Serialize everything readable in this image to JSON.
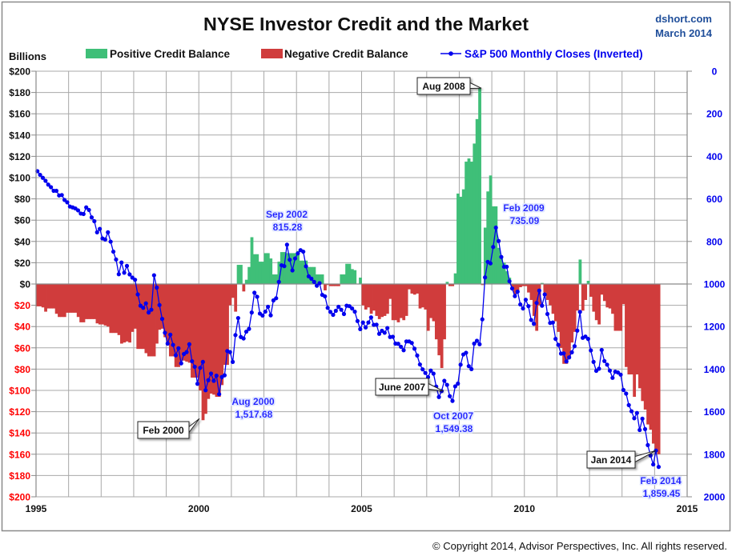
{
  "colors": {
    "positive": "#3fbf78",
    "negative": "#d03c3c",
    "sp500": "#0000ee",
    "grid": "#a8a8a8"
  },
  "header": {
    "title": "NYSE Investor Credit and the Market",
    "source": "dshort.com",
    "date": "March 2014"
  },
  "copyright": "© Copyright 2014, Advisor Perspectives, Inc. All rights reserved.",
  "chart_data": {
    "type": "bar+line",
    "title": "NYSE Investor Credit and the Market",
    "ylabel": "Billions",
    "ylim": [
      -200,
      200
    ],
    "y2lim_inverted": [
      0,
      2000
    ],
    "xlim": [
      1995,
      2015
    ],
    "grid": true,
    "legend_position": "top",
    "legend": [
      "Positive Credit Balance",
      "Negative Credit Balance",
      "S&P 500 Monthly Closes (Inverted)"
    ],
    "y_ticks": [
      "$200",
      "$180",
      "$160",
      "$140",
      "$120",
      "$100",
      "$80",
      "$60",
      "$40",
      "$20",
      "$0",
      "$20",
      "$40",
      "$60",
      "$80",
      "$100",
      "$120",
      "$140",
      "$160",
      "$180",
      "$200"
    ],
    "y2_ticks": [
      "0",
      "200",
      "400",
      "600",
      "800",
      "1000",
      "1200",
      "1400",
      "1600",
      "1800",
      "2000"
    ],
    "x_ticks": [
      "1995",
      "2000",
      "2005",
      "2010",
      "2015"
    ],
    "start": "Jan 1995",
    "end": "Feb 2014",
    "credit_balance_billions": [
      -21,
      -21,
      -22,
      -26,
      -23,
      -23,
      -23,
      -28,
      -31,
      -31,
      -31,
      -27,
      -27,
      -27,
      -27,
      -31,
      -36,
      -36,
      -33,
      -33,
      -33,
      -33,
      -37,
      -38,
      -38,
      -39,
      -40,
      -46,
      -46,
      -46,
      -48,
      -56,
      -55,
      -54,
      -55,
      -45,
      -42,
      -61,
      -61,
      -61,
      -65,
      -68,
      -68,
      -68,
      -56,
      -43,
      -42,
      -50,
      -56,
      -68,
      -68,
      -78,
      -78,
      -72,
      -72,
      -73,
      -74,
      -88,
      -88,
      -88,
      -100,
      -128,
      -122,
      -108,
      -103,
      -104,
      -106,
      -106,
      -95,
      -76,
      -76,
      -20,
      -13,
      -26,
      18,
      18,
      -7,
      4,
      16,
      44,
      28,
      28,
      21,
      21,
      29,
      29,
      24,
      9,
      9,
      21,
      30,
      30,
      29,
      29,
      29,
      29,
      31,
      22,
      22,
      22,
      16,
      16,
      16,
      9,
      9,
      9,
      -6,
      -1,
      -2,
      -2,
      -2,
      -2,
      9,
      9,
      19,
      19,
      14,
      13,
      0,
      6,
      -20,
      -24,
      -22,
      -28,
      -25,
      -30,
      -33,
      -31,
      -30,
      -28,
      -14,
      -34,
      -34,
      -36,
      -32,
      -34,
      -30,
      -5,
      -9,
      -10,
      -9,
      -23,
      -22,
      -24,
      -44,
      -32,
      -35,
      -52,
      -67,
      -79,
      -52,
      2,
      -2,
      -2,
      10,
      85,
      82,
      89,
      115,
      118,
      115,
      132,
      155,
      184,
      -1,
      53,
      87,
      102,
      73,
      73,
      34,
      26,
      20,
      12,
      6,
      -5,
      -12,
      -8,
      -3,
      -2,
      -2,
      -8,
      -15,
      -30,
      -44,
      -20,
      1,
      -8,
      -15,
      -20,
      -28,
      -35,
      -45,
      -60,
      -75,
      -75,
      -70,
      -55,
      -45,
      -25,
      23,
      -25,
      -15,
      3,
      -12,
      -26,
      -34,
      -38,
      -10,
      -16,
      -22,
      -23,
      -28,
      -44,
      -44,
      -44,
      -19,
      -78,
      -85,
      -85,
      -106,
      -85,
      -98,
      -110,
      -118,
      -132,
      -137,
      -150,
      -155,
      -160
    ],
    "sp500_monthly_close": [
      470,
      487,
      501,
      515,
      533,
      545,
      562,
      562,
      584,
      582,
      605,
      616,
      636,
      640,
      645,
      654,
      669,
      671,
      640,
      652,
      687,
      705,
      757,
      741,
      786,
      791,
      757,
      801,
      848,
      885,
      954,
      899,
      947,
      915,
      955,
      970,
      980,
      1049,
      1102,
      1112,
      1091,
      1134,
      1121,
      959,
      1017,
      1099,
      1164,
      1229,
      1280,
      1238,
      1286,
      1335,
      1302,
      1373,
      1329,
      1320,
      1283,
      1363,
      1389,
      1469,
      1394,
      1366,
      1499,
      1452,
      1421,
      1455,
      1431,
      1517.68,
      1437,
      1429,
      1315,
      1320,
      1366,
      1240,
      1160,
      1249,
      1256,
      1224,
      1211,
      1134,
      1041,
      1060,
      1139,
      1148,
      1130,
      1107,
      1147,
      1077,
      1067,
      990,
      912,
      916,
      815.28,
      886,
      936,
      880,
      856,
      841,
      848,
      917,
      964,
      975,
      990,
      1008,
      996,
      1051,
      1058,
      1112,
      1131,
      1145,
      1126,
      1107,
      1121,
      1141,
      1102,
      1104,
      1115,
      1130,
      1174,
      1212,
      1181,
      1204,
      1181,
      1157,
      1192,
      1191,
      1234,
      1220,
      1229,
      1207,
      1249,
      1248,
      1280,
      1281,
      1295,
      1311,
      1270,
      1270,
      1277,
      1304,
      1336,
      1378,
      1401,
      1418,
      1438,
      1407,
      1421,
      1482,
      1531,
      1503,
      1455,
      1474,
      1527,
      1549.38,
      1481,
      1468,
      1379,
      1331,
      1323,
      1386,
      1400,
      1280,
      1267,
      1283,
      1166,
      969,
      896,
      903,
      826,
      735.09,
      798,
      873,
      919,
      919,
      987,
      1021,
      1057,
      1036,
      1096,
      1115,
      1074,
      1104,
      1169,
      1187,
      1089,
      1031,
      1102,
      1049,
      1141,
      1183,
      1181,
      1258,
      1286,
      1327,
      1326,
      1364,
      1345,
      1321,
      1292,
      1219,
      1131,
      1253,
      1247,
      1258,
      1312,
      1366,
      1408,
      1398,
      1310,
      1362,
      1379,
      1407,
      1441,
      1412,
      1416,
      1426,
      1498,
      1515,
      1569,
      1598,
      1631,
      1606,
      1686,
      1633,
      1682,
      1757,
      1806,
      1848,
      1782.59,
      1859.45
    ],
    "annotations": {
      "callouts": [
        {
          "label": "Aug 2008",
          "month": "Aug 2008"
        },
        {
          "label": "Feb 2000",
          "month": "Feb 2000"
        },
        {
          "label": "June 2007",
          "month": "Jun 2007"
        },
        {
          "label": "Jan 2014",
          "month": "Jan 2014"
        }
      ],
      "sp_labels": [
        {
          "date": "Sep 2002",
          "value": "815.28"
        },
        {
          "date": "Aug 2000",
          "value": "1,517.68"
        },
        {
          "date": "Oct 2007",
          "value": "1,549.38"
        },
        {
          "date": "Feb 2009",
          "value": "735.09"
        },
        {
          "date": "Feb 2014",
          "value": "1,859.45"
        }
      ]
    }
  }
}
